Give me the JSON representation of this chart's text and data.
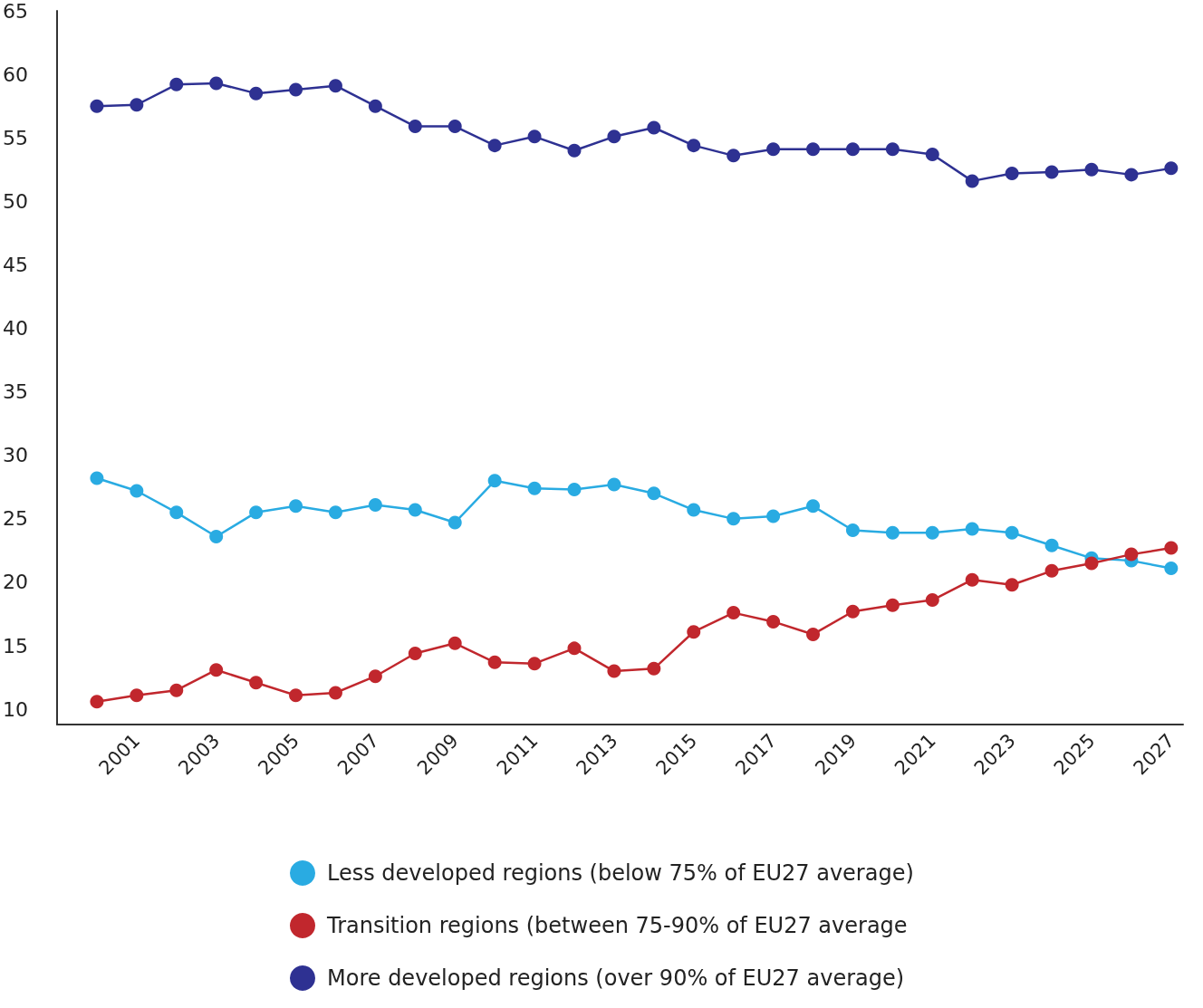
{
  "chart_data": {
    "type": "line",
    "x": [
      2000,
      2001,
      2002,
      2003,
      2004,
      2005,
      2006,
      2007,
      2008,
      2009,
      2010,
      2011,
      2012,
      2013,
      2014,
      2015,
      2016,
      2017,
      2018,
      2019,
      2020,
      2021,
      2022,
      2023,
      2024,
      2025,
      2026,
      2027
    ],
    "series": [
      {
        "name": "Less developed regions (below 75% of EU27 average)",
        "color": "#29abe2",
        "values": [
          28.2,
          27.2,
          25.5,
          23.6,
          25.5,
          26.0,
          25.5,
          26.1,
          25.7,
          24.7,
          28.0,
          27.4,
          27.3,
          27.7,
          27.0,
          25.7,
          25.0,
          25.2,
          26.0,
          24.1,
          23.9,
          23.9,
          24.2,
          23.9,
          22.9,
          21.9,
          21.7,
          21.1
        ]
      },
      {
        "name": "Transition regions (between 75-90% of EU27 average",
        "color": "#c1272d",
        "values": [
          10.6,
          11.1,
          11.5,
          13.1,
          12.1,
          11.1,
          11.3,
          12.6,
          14.4,
          15.2,
          13.7,
          13.6,
          14.8,
          13.0,
          13.2,
          16.1,
          17.6,
          16.9,
          15.9,
          17.7,
          18.2,
          18.6,
          20.2,
          19.8,
          20.9,
          21.5,
          22.2,
          22.7
        ]
      },
      {
        "name": "More developed regions (over 90% of EU27 average)",
        "color": "#2e3192",
        "values": [
          57.5,
          57.6,
          59.2,
          59.3,
          58.5,
          58.8,
          59.1,
          57.5,
          55.9,
          55.9,
          54.4,
          55.1,
          54.0,
          55.1,
          55.8,
          54.4,
          53.6,
          54.1,
          54.1,
          54.1,
          54.1,
          53.7,
          51.6,
          52.2,
          52.3,
          52.5,
          52.1,
          52.6
        ]
      }
    ],
    "xlim": [
      1999,
      2027.3
    ],
    "xticks": [
      2001,
      2003,
      2005,
      2007,
      2009,
      2011,
      2013,
      2015,
      2017,
      2019,
      2021,
      2023,
      2025,
      2027
    ],
    "ylim": [
      8.8,
      65
    ],
    "yticks": [
      10,
      15,
      20,
      25,
      30,
      35,
      40,
      45,
      50,
      55,
      60,
      65
    ],
    "grid": false,
    "legend": "bottom",
    "marker": "circle",
    "line_style": "solid"
  }
}
